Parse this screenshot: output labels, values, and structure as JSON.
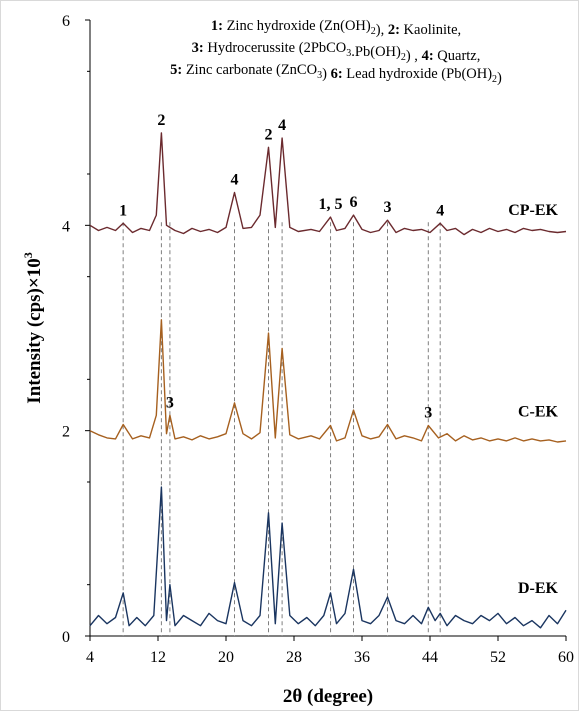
{
  "chart_data": {
    "type": "line",
    "xlabel": "2θ (degree)",
    "ylabel": "Intensity (cps)×10",
    "ylabel_sup": "3",
    "xlim": [
      4,
      60
    ],
    "ylim": [
      0,
      6
    ],
    "xticks": [
      4,
      12,
      20,
      28,
      36,
      44,
      52,
      60
    ],
    "yticks": [
      0,
      2,
      4,
      6
    ],
    "legend_lines": [
      [
        {
          "b": "1:",
          "t": " Zinc hydroxide (Zn(OH)"
        },
        {
          "sub": "2"
        },
        {
          "t": "),  "
        },
        {
          "b": "2:"
        },
        {
          "t": " Kaolinite,"
        }
      ],
      [
        {
          "b": "3:"
        },
        {
          "t": " Hydrocerussite (2PbCO"
        },
        {
          "sub": "3"
        },
        {
          "t": ".Pb(OH)"
        },
        {
          "sub": "2"
        },
        {
          "t": ") , "
        },
        {
          "b": "4:"
        },
        {
          "t": " Quartz,"
        }
      ],
      [
        {
          "b": "5:"
        },
        {
          "t": " Zinc carbonate (ZnCO"
        },
        {
          "sub": "3"
        },
        {
          "t": ")  "
        },
        {
          "b": "6:"
        },
        {
          "t": " Lead hydroxide (Pb(OH)"
        },
        {
          "sub": "2"
        },
        {
          "t": ")"
        }
      ]
    ],
    "dashed_lines_x": [
      7.9,
      12.4,
      13.4,
      21.0,
      25.0,
      26.6,
      32.3,
      35.0,
      39.0,
      43.8,
      45.2
    ],
    "series": [
      {
        "name": "CP-EK",
        "color": "#6b2a2e",
        "x": [
          4,
          5,
          6,
          7,
          7.9,
          9,
          10,
          11,
          11.8,
          12.4,
          13,
          14,
          15,
          16,
          17,
          18,
          19,
          20,
          21,
          22,
          23,
          24,
          25,
          25.8,
          26.6,
          27.5,
          28.5,
          30,
          31,
          32.3,
          33,
          34,
          35,
          36,
          37,
          38,
          39,
          40,
          41,
          42,
          43,
          44,
          45.2,
          46,
          47,
          48,
          49,
          50,
          51,
          52,
          53,
          54,
          55,
          56,
          57,
          58,
          59,
          60
        ],
        "y": [
          4.0,
          3.95,
          3.98,
          3.95,
          4.02,
          3.93,
          3.97,
          3.95,
          4.1,
          4.9,
          4.0,
          3.95,
          3.92,
          3.97,
          3.94,
          3.96,
          3.93,
          3.98,
          4.32,
          3.97,
          3.98,
          4.1,
          4.76,
          3.98,
          4.85,
          3.98,
          3.94,
          3.96,
          3.94,
          4.08,
          3.95,
          3.97,
          4.1,
          3.96,
          3.93,
          3.95,
          4.05,
          3.93,
          3.97,
          3.95,
          3.96,
          3.93,
          4.02,
          3.95,
          3.97,
          3.91,
          3.96,
          3.93,
          3.97,
          3.94,
          3.96,
          3.93,
          3.97,
          3.95,
          3.96,
          3.94,
          3.93,
          3.94
        ]
      },
      {
        "name": "C-EK",
        "color": "#a6601f",
        "x": [
          4,
          5,
          6,
          7,
          7.9,
          9,
          10,
          11,
          11.8,
          12.4,
          13,
          13.4,
          14,
          15,
          16,
          17,
          18,
          19,
          20,
          21,
          22,
          23,
          24,
          25,
          25.8,
          26.6,
          27.5,
          28.5,
          30,
          31,
          32.3,
          33,
          34,
          35,
          36,
          37,
          38,
          39,
          40,
          41,
          42,
          43,
          43.8,
          45,
          46,
          47,
          48,
          49,
          50,
          51,
          52,
          53,
          54,
          55,
          56,
          57,
          58,
          59,
          60
        ],
        "y": [
          2.0,
          1.96,
          1.93,
          1.92,
          2.06,
          1.92,
          1.95,
          1.93,
          2.15,
          3.08,
          1.97,
          2.15,
          1.92,
          1.94,
          1.91,
          1.95,
          1.92,
          1.94,
          1.97,
          2.27,
          1.97,
          1.92,
          1.98,
          2.95,
          1.93,
          2.8,
          1.96,
          1.92,
          1.95,
          1.92,
          2.05,
          1.9,
          1.93,
          2.2,
          1.95,
          1.92,
          1.94,
          2.06,
          1.92,
          1.95,
          1.93,
          1.9,
          2.05,
          1.93,
          1.97,
          1.9,
          1.95,
          1.91,
          1.93,
          1.9,
          1.92,
          1.9,
          1.93,
          1.9,
          1.92,
          1.9,
          1.91,
          1.89,
          1.9
        ]
      },
      {
        "name": "D-EK",
        "color": "#1a3560",
        "x": [
          4,
          5,
          6,
          7,
          7.9,
          8.6,
          9.5,
          10.5,
          11.5,
          12.4,
          13,
          13.4,
          14,
          15,
          16,
          17,
          18,
          19,
          20,
          21,
          22,
          23,
          24,
          25,
          25.8,
          26.6,
          27.5,
          28.5,
          29.5,
          30.5,
          31.5,
          32.3,
          33,
          34,
          35,
          36,
          37,
          38,
          39,
          40,
          41,
          42,
          43,
          43.8,
          44.6,
          45.2,
          46,
          47,
          48,
          49,
          50,
          51,
          52,
          53,
          54,
          55,
          56,
          57,
          58,
          59,
          60
        ],
        "y": [
          0.1,
          0.2,
          0.12,
          0.18,
          0.42,
          0.1,
          0.18,
          0.1,
          0.2,
          1.45,
          0.15,
          0.5,
          0.1,
          0.2,
          0.15,
          0.1,
          0.22,
          0.15,
          0.12,
          0.52,
          0.15,
          0.1,
          0.2,
          1.2,
          0.12,
          1.1,
          0.2,
          0.12,
          0.18,
          0.1,
          0.2,
          0.42,
          0.12,
          0.22,
          0.65,
          0.15,
          0.12,
          0.2,
          0.38,
          0.15,
          0.12,
          0.2,
          0.12,
          0.28,
          0.15,
          0.22,
          0.1,
          0.2,
          0.15,
          0.12,
          0.2,
          0.15,
          0.22,
          0.12,
          0.18,
          0.1,
          0.15,
          0.08,
          0.2,
          0.12,
          0.25
        ]
      }
    ],
    "peak_labels": [
      {
        "text": "1",
        "x": 7.9,
        "y": 4.02
      },
      {
        "text": "2",
        "x": 12.4,
        "y": 4.9
      },
      {
        "text": "4",
        "x": 21.0,
        "y": 4.32
      },
      {
        "text": "2",
        "x": 25.0,
        "y": 4.76
      },
      {
        "text": "4",
        "x": 26.6,
        "y": 4.85
      },
      {
        "text": "1, 5",
        "x": 32.3,
        "y": 4.08
      },
      {
        "text": "6",
        "x": 35.0,
        "y": 4.1
      },
      {
        "text": "3",
        "x": 39.0,
        "y": 4.05
      },
      {
        "text": "4",
        "x": 45.2,
        "y": 4.02
      },
      {
        "text": "3",
        "x": 13.4,
        "y": 2.15
      },
      {
        "text": "3",
        "x": 43.8,
        "y": 2.05
      }
    ]
  }
}
